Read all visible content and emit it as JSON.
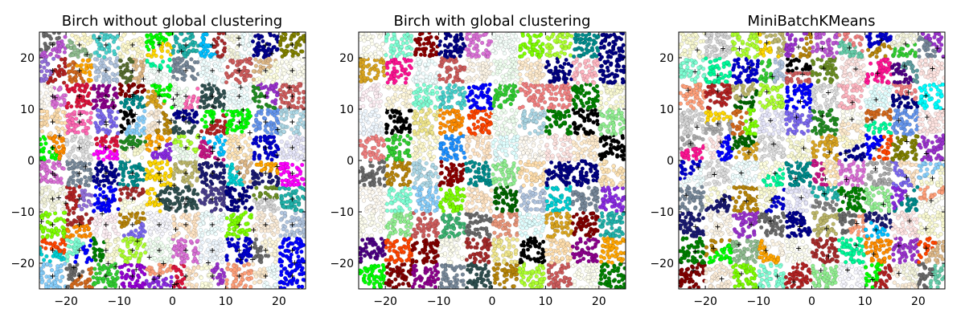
{
  "figure": {
    "panels": [
      {
        "title": "Birch without global clustering"
      },
      {
        "title": "Birch with global clustering"
      },
      {
        "title": "MiniBatchKMeans"
      }
    ]
  },
  "chart_data": [
    {
      "type": "scatter",
      "title": "Birch without global clustering",
      "xlabel": "",
      "ylabel": "",
      "xlim": [
        -25,
        25
      ],
      "ylim": [
        -25,
        25
      ],
      "xticks": [
        -20,
        -10,
        0,
        10,
        20
      ],
      "yticks": [
        -20,
        -10,
        0,
        10,
        20
      ],
      "grid": false,
      "dataset": {
        "blob_grid": [
          10,
          10
        ],
        "blob_centers_x": [
          -22.5,
          22.5
        ],
        "blob_centers_y": [
          -22.5,
          22.5
        ],
        "blob_half_width": 2.4
      },
      "centroid_marker": "+",
      "n_centroids_approx": 158
    },
    {
      "type": "scatter",
      "title": "Birch with global clustering",
      "xlabel": "",
      "ylabel": "",
      "xlim": [
        -25,
        25
      ],
      "ylim": [
        -25,
        25
      ],
      "xticks": [
        -20,
        -10,
        0,
        10,
        20
      ],
      "yticks": [
        -20,
        -10,
        0,
        10,
        20
      ],
      "grid": false,
      "dataset": {
        "blob_grid": [
          10,
          10
        ],
        "blob_centers_x": [
          -22.5,
          22.5
        ],
        "blob_centers_y": [
          -22.5,
          22.5
        ],
        "blob_half_width": 2.4
      },
      "n_clusters": 100
    },
    {
      "type": "scatter",
      "title": "MiniBatchKMeans",
      "xlabel": "",
      "ylabel": "",
      "xlim": [
        -25,
        25
      ],
      "ylim": [
        -25,
        25
      ],
      "xticks": [
        -20,
        -10,
        0,
        10,
        20
      ],
      "yticks": [
        -20,
        -10,
        0,
        10,
        20
      ],
      "grid": false,
      "dataset": {
        "blob_grid": [
          10,
          10
        ],
        "blob_centers_x": [
          -22.5,
          22.5
        ],
        "blob_centers_y": [
          -22.5,
          22.5
        ],
        "blob_half_width": 2.4
      },
      "centroid_marker": "+",
      "n_clusters": 100
    }
  ],
  "palette": [
    "#f0f8ff",
    "#faebd7",
    "#00ffff",
    "#7fffd4",
    "#f0ffff",
    "#f5f5dc",
    "#ffe4c4",
    "#000000",
    "#ffebcd",
    "#0000ff",
    "#8a2be2",
    "#a52a2a",
    "#deb887",
    "#5f9ea0",
    "#7fff00",
    "#d2691e",
    "#ff7f50",
    "#6495ed",
    "#fff8dc",
    "#dc143c",
    "#00008b",
    "#008b8b",
    "#b8860b",
    "#a9a9a9",
    "#006400",
    "#bdb76b",
    "#8b008b",
    "#556b2f",
    "#ff8c00",
    "#9932cc",
    "#8b0000",
    "#e9967a",
    "#8fbc8f",
    "#483d8b",
    "#2f4f4f",
    "#00ced1",
    "#9400d3",
    "#ff1493",
    "#00bfff",
    "#696969",
    "#1e90ff",
    "#b22222",
    "#fffaf0",
    "#228b22",
    "#ff00ff",
    "#dcdcdc",
    "#f8f8ff",
    "#ffd700",
    "#daa520",
    "#808080",
    "#008000",
    "#adff2f",
    "#f0fff0",
    "#ff69b4",
    "#cd5c5c",
    "#4b0082",
    "#fffff0",
    "#f0e68c",
    "#e6e6fa",
    "#fff0f5",
    "#7cfc00",
    "#fffacd",
    "#add8e6",
    "#f08080",
    "#e0ffff",
    "#fafad2",
    "#90ee90",
    "#d3d3d3",
    "#ffb6c1",
    "#ffa07a",
    "#20b2aa",
    "#87cefa",
    "#778899",
    "#b0c4de",
    "#ffffe0",
    "#00ff00",
    "#32cd32",
    "#faf0e6",
    "#800000",
    "#66cdaa",
    "#0000cd",
    "#ba55d3",
    "#9370db",
    "#3cb371",
    "#7b68ee",
    "#00fa9a",
    "#48d1cc",
    "#c71585",
    "#191970",
    "#f5fffa",
    "#ffe4e1",
    "#ffe4b5",
    "#ffdead",
    "#000080",
    "#fdf5e6",
    "#808000",
    "#6b8e23",
    "#ffa500",
    "#ff4500",
    "#da70d6"
  ]
}
